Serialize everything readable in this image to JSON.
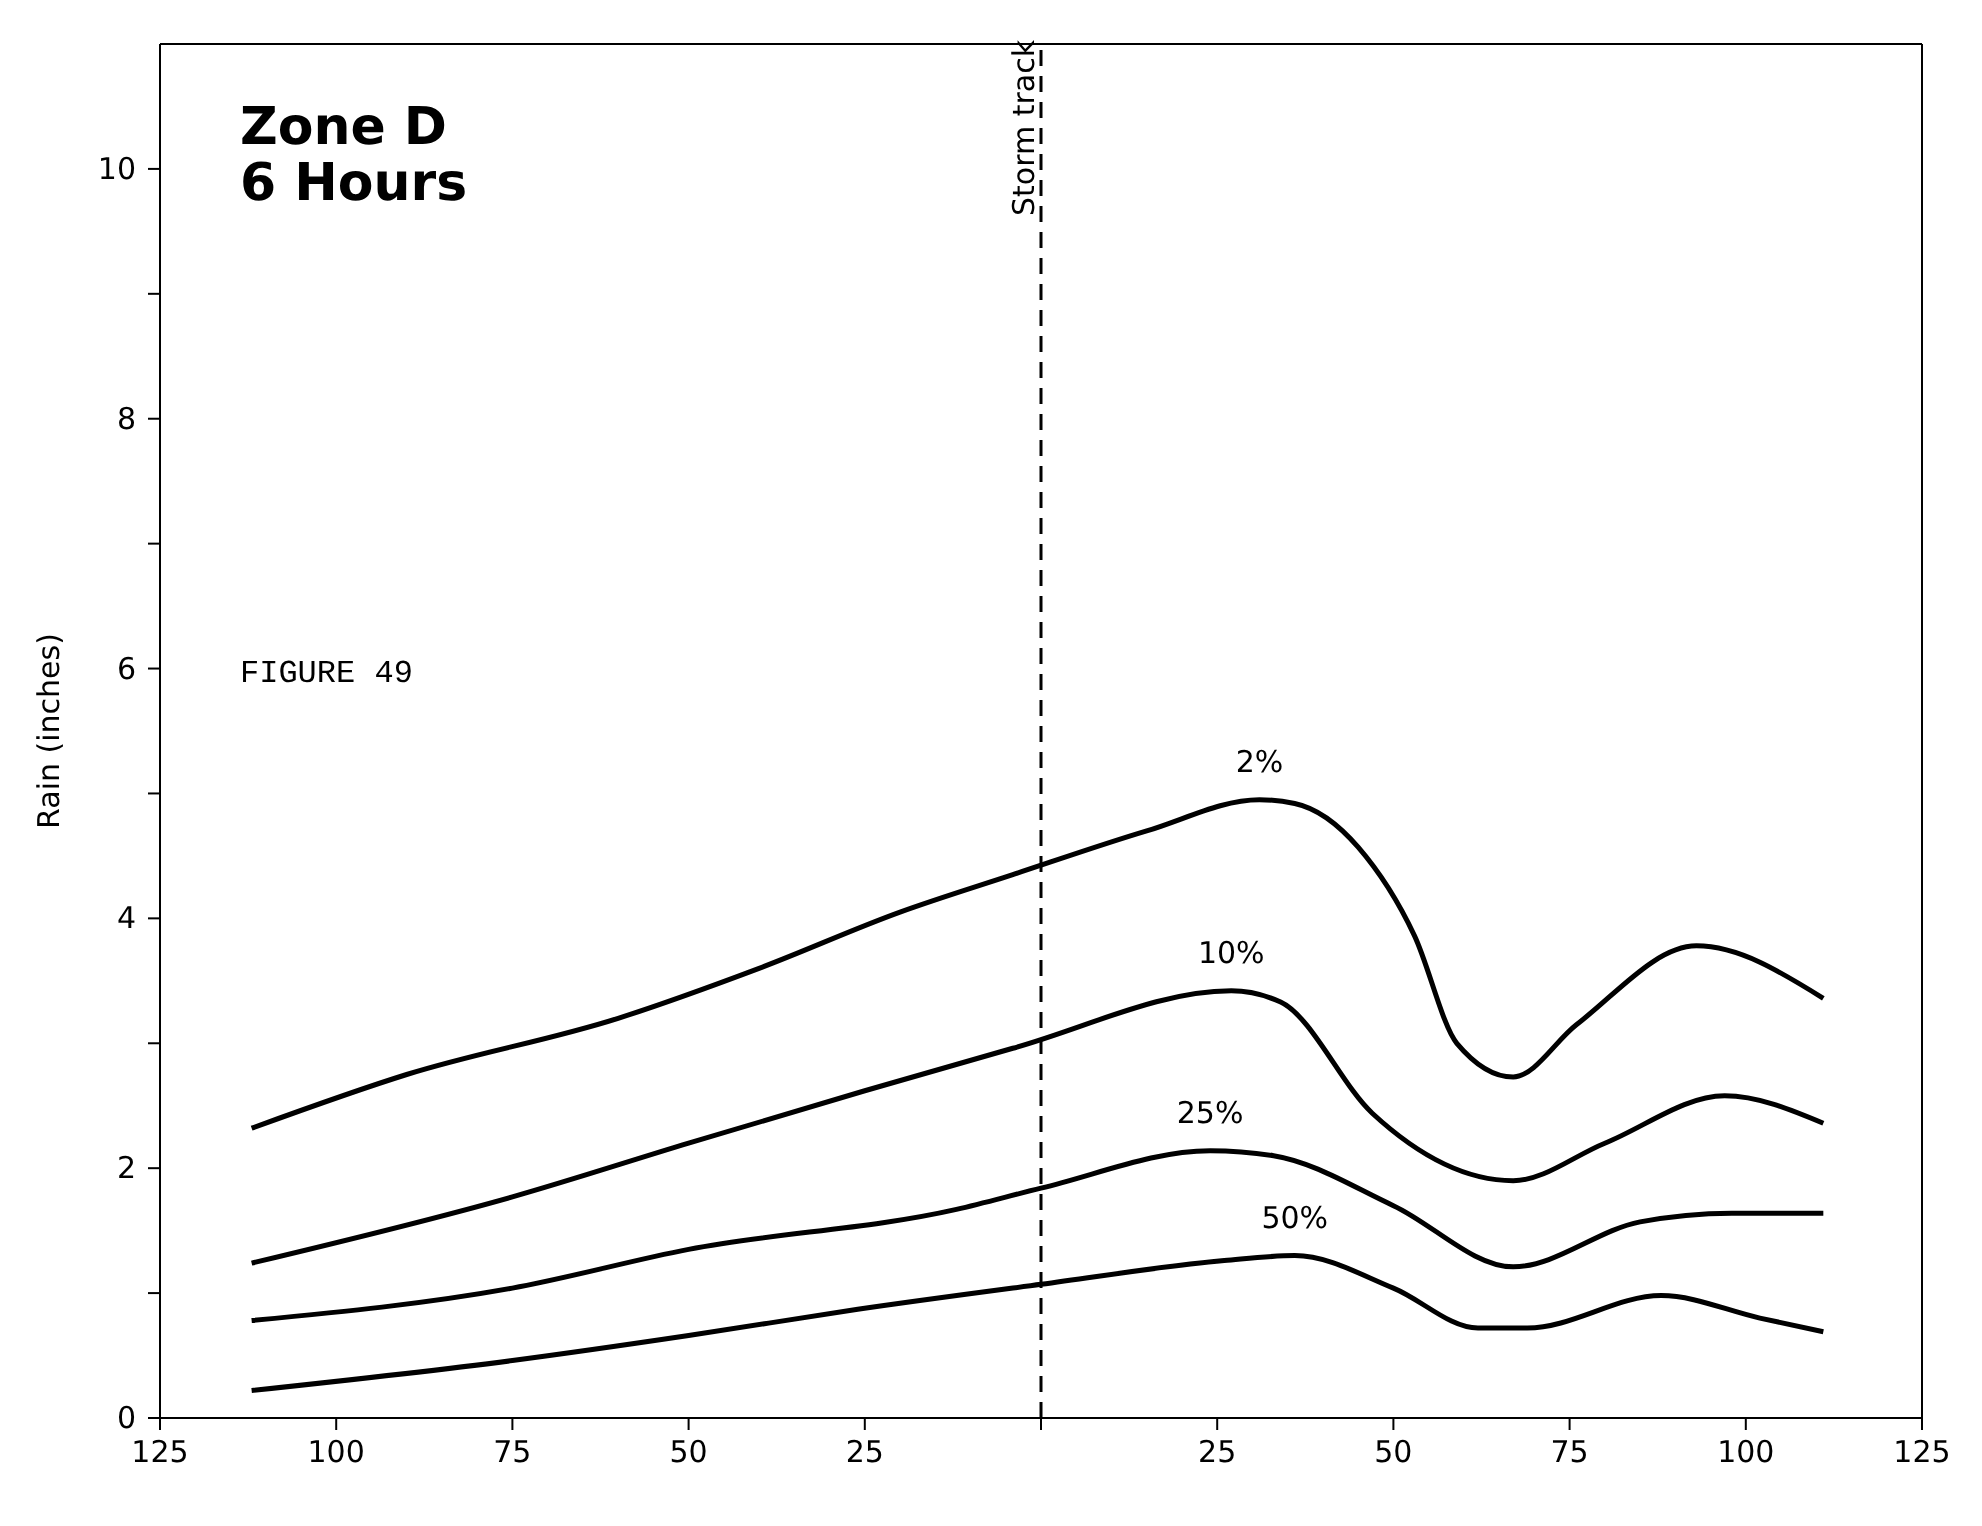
{
  "chart_data": {
    "type": "line",
    "title": "Zone D\n6 Hours",
    "ylabel": "Rain (inches)",
    "annotations": [
      "FIGURE 49"
    ],
    "xlim": [
      -125,
      125
    ],
    "xticks": [
      {
        "value": -125,
        "label": "125"
      },
      {
        "value": -100,
        "label": "100"
      },
      {
        "value": -75,
        "label": "75"
      },
      {
        "value": -50,
        "label": "50"
      },
      {
        "value": -25,
        "label": "25"
      },
      {
        "value": 0,
        "label": null
      },
      25,
      50,
      75,
      100,
      125
    ],
    "ylim": [
      0,
      11
    ],
    "yticks": [
      0,
      {
        "value": 1,
        "label": null
      },
      2,
      {
        "value": 3,
        "label": null
      },
      4,
      {
        "value": 5,
        "label": null
      },
      6,
      {
        "value": 7,
        "label": null
      },
      8,
      {
        "value": 9,
        "label": null
      },
      10
    ],
    "legend": false,
    "marker": "none",
    "line_style": "solid",
    "ref_lines": [
      {
        "axis": "x",
        "value": 0,
        "label": "Storm track",
        "line_style": "dashed",
        "color": "#000000"
      }
    ],
    "series": [
      {
        "name": "2%",
        "color": "#000000",
        "x": [
          -112,
          -90,
          -60,
          -40,
          -20,
          -4,
          15,
          31,
          36,
          45,
          53,
          59,
          67,
          76,
          93,
          111
        ],
        "values": [
          2.32,
          2.75,
          3.2,
          3.6,
          4.05,
          4.35,
          4.7,
          4.95,
          4.92,
          4.57,
          3.86,
          3.0,
          2.73,
          3.15,
          3.78,
          3.36
        ]
      },
      {
        "name": "10%",
        "color": "#000000",
        "x": [
          -112,
          -75,
          -50,
          -25,
          -4,
          27,
          34,
          47,
          67,
          80,
          97,
          111
        ],
        "values": [
          1.24,
          1.77,
          2.2,
          2.62,
          2.96,
          3.42,
          3.33,
          2.44,
          1.9,
          2.2,
          2.58,
          2.36
        ]
      },
      {
        "name": "25%",
        "color": "#000000",
        "x": [
          -112,
          -75,
          -50,
          -12,
          0,
          24,
          33,
          50,
          67,
          85,
          98,
          111
        ],
        "values": [
          0.78,
          1.04,
          1.35,
          1.67,
          1.84,
          2.14,
          2.1,
          1.7,
          1.21,
          1.57,
          1.64,
          1.64
        ]
      },
      {
        "name": "50%",
        "color": "#000000",
        "x": [
          -112,
          -75,
          -50,
          -26,
          0,
          26,
          36,
          50,
          62,
          69,
          88,
          102,
          111
        ],
        "values": [
          0.22,
          0.46,
          0.66,
          0.87,
          1.07,
          1.26,
          1.3,
          1.04,
          0.72,
          0.72,
          0.98,
          0.8,
          0.69
        ]
      }
    ]
  }
}
